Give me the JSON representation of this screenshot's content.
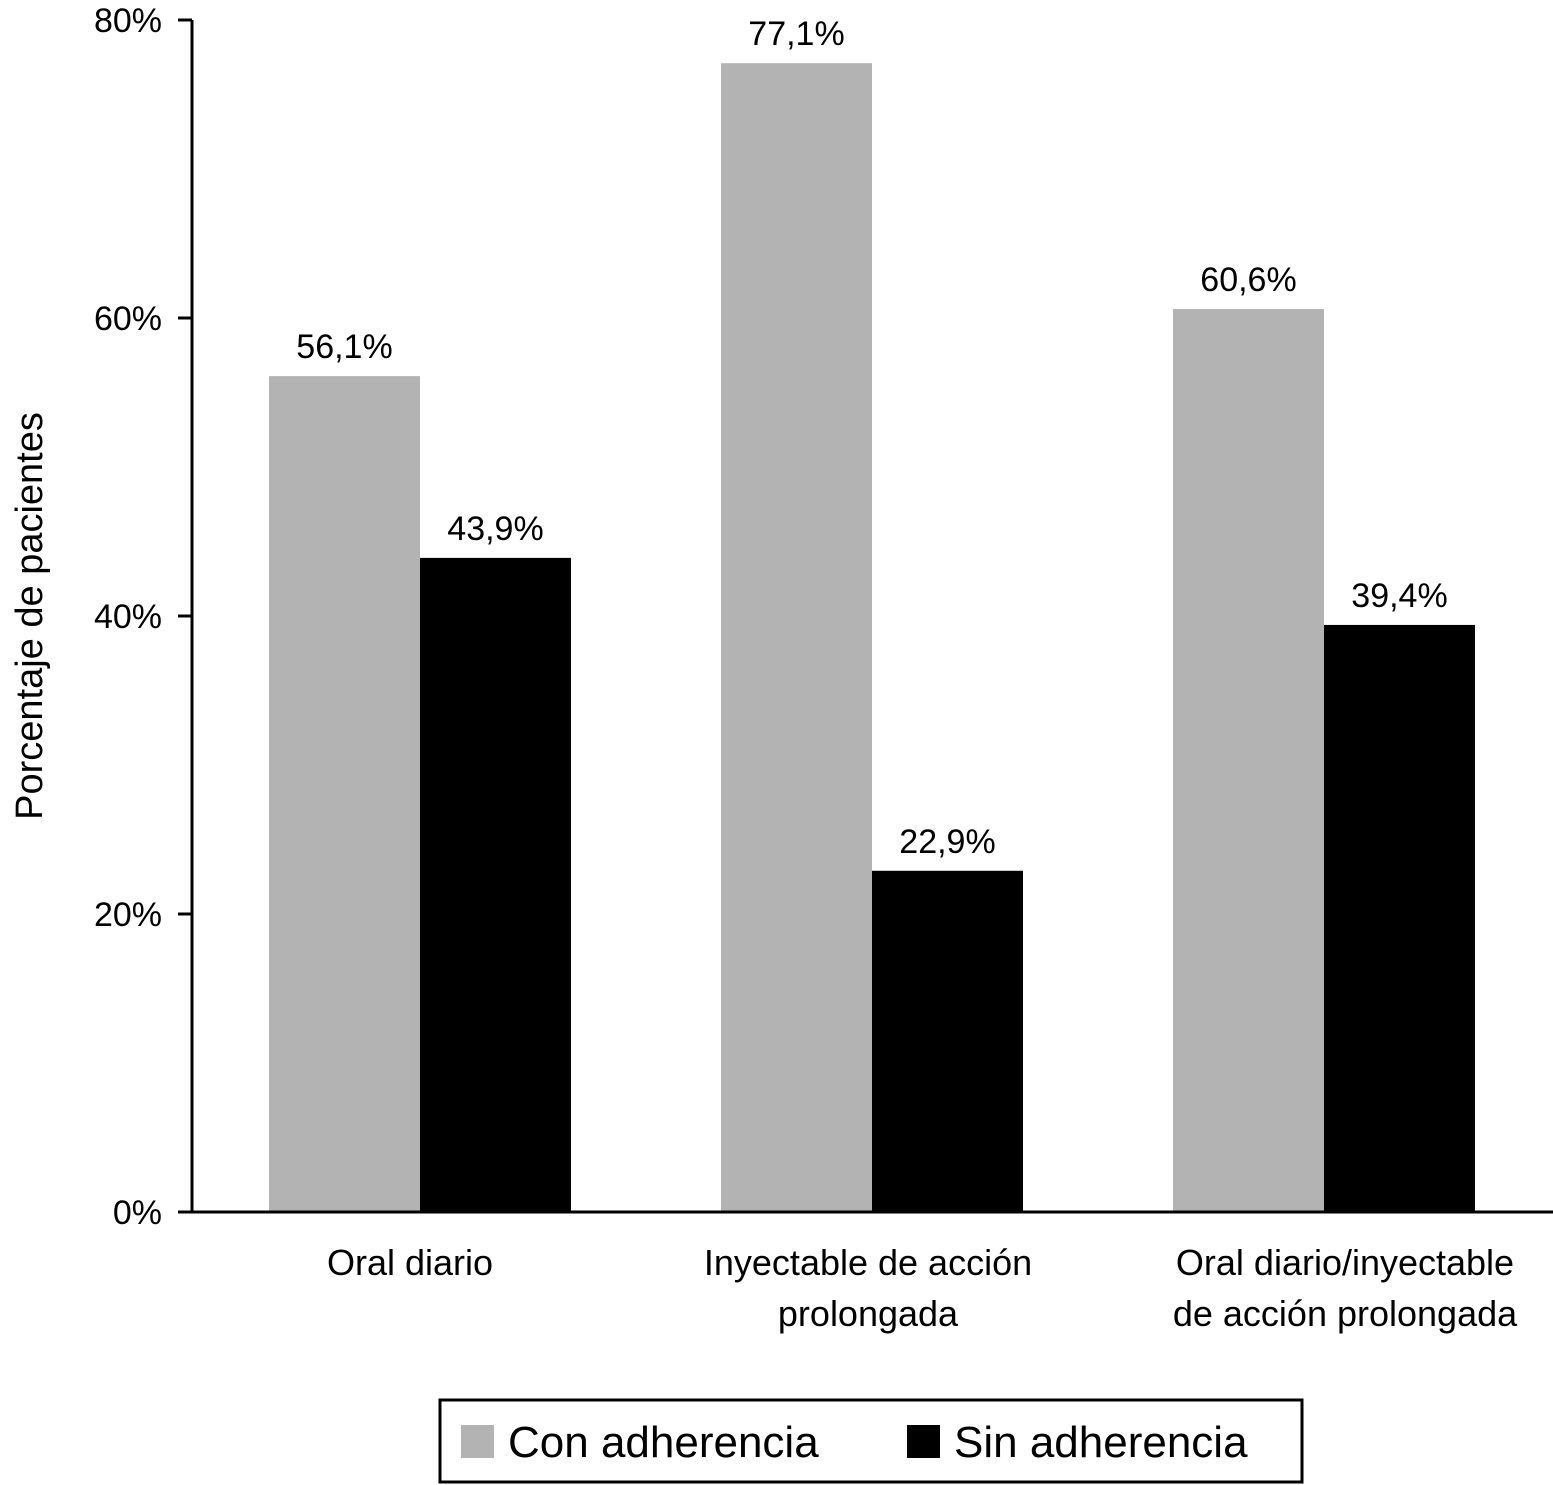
{
  "chart_data": {
    "type": "bar",
    "ylabel": "Porcentaje de pacientes",
    "xlabel": "",
    "ylim": [
      0,
      80
    ],
    "yticks": [
      0,
      20,
      40,
      60,
      80
    ],
    "ytick_labels": [
      "0%",
      "20%",
      "40%",
      "60%",
      "80%"
    ],
    "categories": [
      [
        "Oral diario"
      ],
      [
        "Inyectable de acción",
        "prolongada"
      ],
      [
        "Oral diario/inyectable",
        "de acción prolongada"
      ]
    ],
    "series": [
      {
        "name": "Con adherencia",
        "color": "#b3b3b3",
        "values": [
          56.1,
          77.1,
          60.6
        ],
        "labels": [
          "56,1%",
          "77,1%",
          "60,6%"
        ]
      },
      {
        "name": "Sin adherencia",
        "color": "#000000",
        "values": [
          43.9,
          22.9,
          39.4
        ],
        "labels": [
          "43,9%",
          "22,9%",
          "39,4%"
        ]
      }
    ],
    "legend_position": "bottom-center",
    "grid": false
  }
}
